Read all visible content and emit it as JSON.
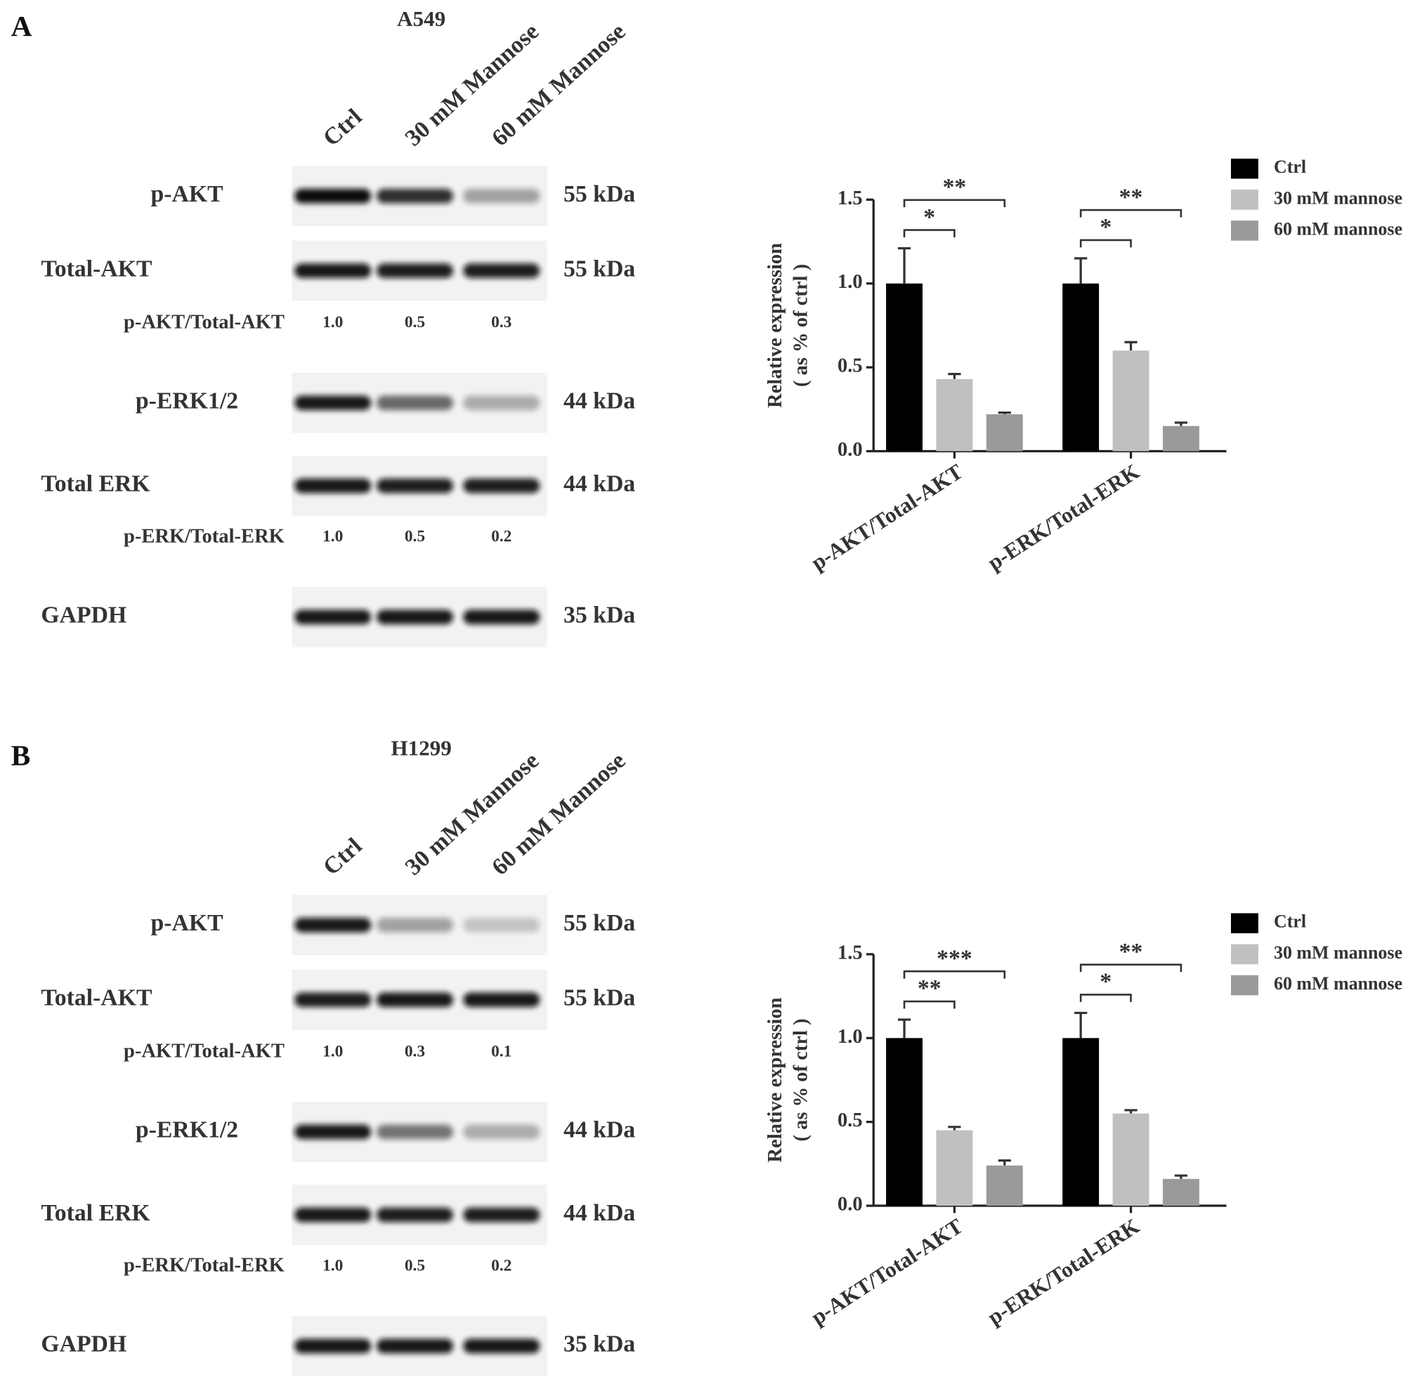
{
  "panels": [
    {
      "label": "A",
      "cell_line": "A549",
      "lanes": [
        "Ctrl",
        "30 mM Mannose",
        "60 mM Mannose"
      ],
      "rows": [
        {
          "label": "p-AKT",
          "size": "55 kDa"
        },
        {
          "label": "Total-AKT",
          "size": "55 kDa"
        },
        {
          "label": "p-AKT/Total-AKT",
          "values": [
            "1.0",
            "0.5",
            "0.3"
          ]
        },
        {
          "label": "p-ERK1/2",
          "size": "44 kDa"
        },
        {
          "label": "Total ERK",
          "size": "44 kDa"
        },
        {
          "label": "p-ERK/Total-ERK",
          "values": [
            "1.0",
            "0.5",
            "0.2"
          ]
        },
        {
          "label": "GAPDH",
          "size": "35 kDa"
        }
      ]
    },
    {
      "label": "B",
      "cell_line": "H1299",
      "lanes": [
        "Ctrl",
        "30 mM Mannose",
        "60 mM Mannose"
      ],
      "rows": [
        {
          "label": "p-AKT",
          "size": "55 kDa"
        },
        {
          "label": "Total-AKT",
          "size": "55 kDa"
        },
        {
          "label": "p-AKT/Total-AKT",
          "values": [
            "1.0",
            "0.3",
            "0.1"
          ]
        },
        {
          "label": "p-ERK1/2",
          "size": "44 kDa"
        },
        {
          "label": "Total ERK",
          "size": "44 kDa"
        },
        {
          "label": "p-ERK/Total-ERK",
          "values": [
            "1.0",
            "0.5",
            "0.2"
          ]
        },
        {
          "label": "GAPDH",
          "size": "35 kDa"
        }
      ]
    }
  ],
  "chart_data": [
    {
      "type": "bar",
      "ylabel": [
        "Relative expression",
        "( as % of ctrl )"
      ],
      "categories": [
        "p-AKT/Total-AKT",
        "p-ERK/Total-ERK"
      ],
      "series": [
        {
          "name": "Ctrl",
          "color": "#000000",
          "values": [
            1.0,
            1.0
          ],
          "errors": [
            0.21,
            0.15
          ]
        },
        {
          "name": "30 mM mannose",
          "color": "#c0c0c0",
          "values": [
            0.43,
            0.6
          ],
          "errors": [
            0.03,
            0.05
          ]
        },
        {
          "name": "60 mM mannose",
          "color": "#9a9a9a",
          "values": [
            0.22,
            0.15
          ],
          "errors": [
            0.01,
            0.02
          ]
        }
      ],
      "ylim": [
        0,
        1.5
      ],
      "yticks": [
        {
          "value": 0,
          "label": "0.0"
        },
        {
          "value": 0.5,
          "label": "0.5"
        },
        {
          "value": 1,
          "label": "1.0"
        },
        {
          "value": 1.5,
          "label": "1.5"
        }
      ],
      "legend": "right",
      "annotations": [
        {
          "text": "*",
          "category": 0,
          "series": [
            0,
            1
          ]
        },
        {
          "text": "**",
          "category": 0,
          "series": [
            0,
            2
          ]
        },
        {
          "text": "*",
          "category": 1,
          "series": [
            0,
            1
          ]
        },
        {
          "text": "**",
          "category": 1,
          "series": [
            0,
            2
          ]
        }
      ]
    },
    {
      "type": "bar",
      "ylabel": [
        "Relative expression",
        "( as % of ctrl )"
      ],
      "categories": [
        "p-AKT/Total-AKT",
        "p-ERK/Total-ERK"
      ],
      "series": [
        {
          "name": "Ctrl",
          "color": "#000000",
          "values": [
            1.0,
            1.0
          ],
          "errors": [
            0.11,
            0.15
          ]
        },
        {
          "name": "30 mM mannose",
          "color": "#c0c0c0",
          "values": [
            0.45,
            0.55
          ],
          "errors": [
            0.02,
            0.02
          ]
        },
        {
          "name": "60 mM mannose",
          "color": "#9a9a9a",
          "values": [
            0.24,
            0.16
          ],
          "errors": [
            0.03,
            0.02
          ]
        }
      ],
      "ylim": [
        0,
        1.5
      ],
      "yticks": [
        {
          "value": 0,
          "label": "0.0"
        },
        {
          "value": 0.5,
          "label": "0.5"
        },
        {
          "value": 1,
          "label": "1.0"
        },
        {
          "value": 1.5,
          "label": "1.5"
        }
      ],
      "legend": "right",
      "annotations": [
        {
          "text": "**",
          "category": 0,
          "series": [
            0,
            1
          ]
        },
        {
          "text": "***",
          "category": 0,
          "series": [
            0,
            2
          ]
        },
        {
          "text": "*",
          "category": 1,
          "series": [
            0,
            1
          ]
        },
        {
          "text": "**",
          "category": 1,
          "series": [
            0,
            2
          ]
        }
      ]
    }
  ]
}
